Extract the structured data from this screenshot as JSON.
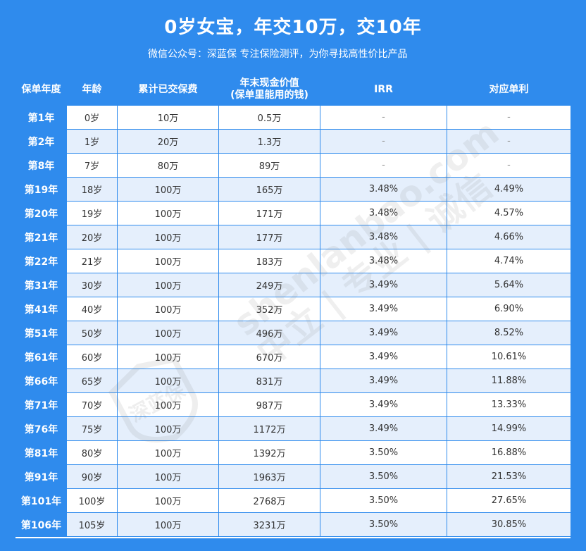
{
  "header": {
    "title": "0岁女宝，年交10万，交10年",
    "subtitle": "微信公众号：深蓝保   专注保险测评，为你寻找高性价比产品"
  },
  "table": {
    "columns": [
      "保单年度",
      "年龄",
      "累计已交保费",
      "年末现金价值",
      "(保单里能用的钱)",
      "IRR",
      "对应单利"
    ],
    "rows": [
      [
        "第1年",
        "0岁",
        "10万",
        "0.5万",
        "-",
        "-"
      ],
      [
        "第2年",
        "1岁",
        "20万",
        "1.3万",
        "-",
        "-"
      ],
      [
        "第8年",
        "7岁",
        "80万",
        "89万",
        "-",
        "-"
      ],
      [
        "第19年",
        "18岁",
        "100万",
        "165万",
        "3.48%",
        "4.49%"
      ],
      [
        "第20年",
        "19岁",
        "100万",
        "171万",
        "3.48%",
        "4.57%"
      ],
      [
        "第21年",
        "20岁",
        "100万",
        "177万",
        "3.48%",
        "4.66%"
      ],
      [
        "第22年",
        "21岁",
        "100万",
        "183万",
        "3.48%",
        "4.74%"
      ],
      [
        "第31年",
        "30岁",
        "100万",
        "249万",
        "3.49%",
        "5.64%"
      ],
      [
        "第41年",
        "40岁",
        "100万",
        "352万",
        "3.49%",
        "6.90%"
      ],
      [
        "第51年",
        "50岁",
        "100万",
        "496万",
        "3.49%",
        "8.52%"
      ],
      [
        "第61年",
        "60岁",
        "100万",
        "670万",
        "3.49%",
        "10.61%"
      ],
      [
        "第66年",
        "65岁",
        "100万",
        "831万",
        "3.49%",
        "11.88%"
      ],
      [
        "第71年",
        "70岁",
        "100万",
        "987万",
        "3.49%",
        "13.33%"
      ],
      [
        "第76年",
        "75岁",
        "100万",
        "1172万",
        "3.49%",
        "14.99%"
      ],
      [
        "第81年",
        "80岁",
        "100万",
        "1392万",
        "3.50%",
        "16.88%"
      ],
      [
        "第91年",
        "90岁",
        "100万",
        "1963万",
        "3.50%",
        "21.53%"
      ],
      [
        "第101年",
        "100岁",
        "100万",
        "2768万",
        "3.50%",
        "27.65%"
      ],
      [
        "第106年",
        "105岁",
        "100万",
        "3231万",
        "3.50%",
        "30.85%"
      ]
    ]
  },
  "watermark": {
    "line1": "shenlanbao.com",
    "line2": "中立 | 专业 | 诚信",
    "logo_text": "深蓝保"
  },
  "colors": {
    "brand_blue": "#2f8bed",
    "row_alt": "#e5effc",
    "text": "#333333"
  }
}
